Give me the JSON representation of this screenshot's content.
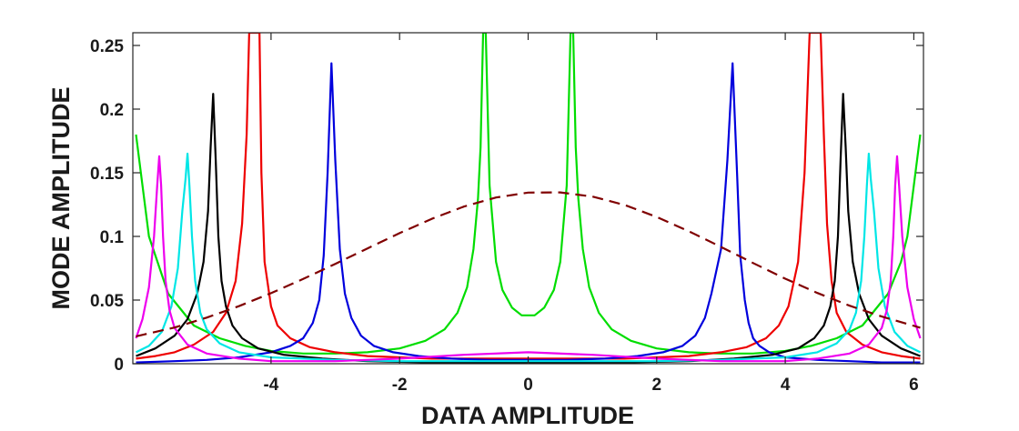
{
  "chart_data": {
    "type": "line",
    "xlabel": "DATA  AMPLITUDE",
    "ylabel": "MODE  AMPLITUDE",
    "xlim": [
      -6.15,
      6.15
    ],
    "ylim": [
      0,
      0.26
    ],
    "xticks": [
      -4,
      -2,
      0,
      2,
      4,
      6
    ],
    "xtick_labels": [
      "-4",
      "-2",
      "0",
      "2",
      "4",
      "6"
    ],
    "yticks": [
      0,
      0.05,
      0.1,
      0.15,
      0.2,
      0.25
    ],
    "ytick_labels": [
      "0",
      "0.05",
      "0.1",
      "0.15",
      "0.2",
      "0.25"
    ],
    "grid": false,
    "legend": "none",
    "series": [
      {
        "color": "#00dd00",
        "style": "solid",
        "x": [
          -6.1,
          -5.9,
          -5.6,
          -5.2,
          -4.8,
          -4.4,
          -4.0,
          -3.5,
          -3.0,
          -2.5,
          -2.0,
          -1.6,
          -1.3,
          -1.1,
          -0.95,
          -0.85,
          -0.78,
          -0.74,
          -0.7,
          -0.66,
          -0.6,
          -0.5,
          -0.4,
          -0.25,
          -0.1,
          0.1,
          0.25,
          0.4,
          0.5,
          0.6,
          0.66,
          0.7,
          0.74,
          0.78,
          0.85,
          0.95,
          1.1,
          1.3,
          1.6,
          2.0,
          2.5,
          3.0,
          3.5,
          4.0,
          4.4,
          4.8,
          5.2,
          5.6,
          5.8,
          5.9,
          6.0,
          6.1
        ],
        "y": [
          0.18,
          0.1,
          0.055,
          0.03,
          0.02,
          0.014,
          0.01,
          0.008,
          0.008,
          0.009,
          0.012,
          0.018,
          0.027,
          0.04,
          0.06,
          0.09,
          0.13,
          0.17,
          0.26,
          0.26,
          0.14,
          0.08,
          0.058,
          0.044,
          0.038,
          0.038,
          0.044,
          0.058,
          0.08,
          0.14,
          0.26,
          0.26,
          0.17,
          0.13,
          0.09,
          0.06,
          0.04,
          0.027,
          0.018,
          0.012,
          0.009,
          0.008,
          0.008,
          0.01,
          0.014,
          0.02,
          0.03,
          0.055,
          0.08,
          0.1,
          0.14,
          0.18
        ]
      },
      {
        "color": "#ee0000",
        "style": "solid",
        "x": [
          -6.1,
          -5.8,
          -5.5,
          -5.2,
          -4.9,
          -4.7,
          -4.55,
          -4.45,
          -4.38,
          -4.34,
          -4.3,
          -4.22,
          -4.18,
          -4.15,
          -4.1,
          -4.0,
          -3.9,
          -3.7,
          -3.4,
          -3.0,
          -2.5,
          -2.0,
          -1.5,
          -1.0,
          -0.5,
          0.0,
          0.5,
          1.0,
          1.5,
          2.0,
          2.5,
          3.0,
          3.4,
          3.7,
          3.9,
          4.05,
          4.2,
          4.3,
          4.38,
          4.42,
          4.47,
          4.55,
          4.6,
          4.65,
          4.72,
          4.8,
          4.95,
          5.2,
          5.5,
          5.8,
          6.1
        ],
        "y": [
          0.004,
          0.006,
          0.009,
          0.015,
          0.025,
          0.04,
          0.065,
          0.11,
          0.18,
          0.26,
          0.26,
          0.26,
          0.26,
          0.15,
          0.08,
          0.045,
          0.03,
          0.02,
          0.013,
          0.009,
          0.006,
          0.005,
          0.004,
          0.004,
          0.004,
          0.004,
          0.004,
          0.004,
          0.004,
          0.005,
          0.006,
          0.009,
          0.013,
          0.02,
          0.03,
          0.045,
          0.08,
          0.15,
          0.26,
          0.26,
          0.26,
          0.26,
          0.18,
          0.11,
          0.065,
          0.04,
          0.025,
          0.015,
          0.009,
          0.006,
          0.004
        ]
      },
      {
        "color": "#0000dd",
        "style": "solid",
        "x": [
          -6.1,
          -5.5,
          -5.0,
          -4.5,
          -4.0,
          -3.7,
          -3.5,
          -3.35,
          -3.25,
          -3.18,
          -3.12,
          -3.06,
          -3.0,
          -2.93,
          -2.85,
          -2.75,
          -2.6,
          -2.4,
          -2.1,
          -1.7,
          -1.2,
          -0.6,
          0.0,
          0.6,
          1.2,
          1.7,
          2.1,
          2.4,
          2.6,
          2.75,
          2.85,
          3.0,
          3.1,
          3.18,
          3.25,
          3.3,
          3.37,
          3.43,
          3.5,
          3.6,
          3.75,
          4.0,
          4.5,
          5.0,
          5.5,
          6.1
        ],
        "y": [
          0.001,
          0.002,
          0.003,
          0.005,
          0.009,
          0.014,
          0.02,
          0.032,
          0.05,
          0.085,
          0.15,
          0.236,
          0.16,
          0.09,
          0.055,
          0.036,
          0.022,
          0.014,
          0.009,
          0.006,
          0.004,
          0.003,
          0.003,
          0.003,
          0.004,
          0.006,
          0.009,
          0.014,
          0.022,
          0.036,
          0.055,
          0.09,
          0.16,
          0.236,
          0.15,
          0.085,
          0.05,
          0.032,
          0.02,
          0.014,
          0.009,
          0.005,
          0.003,
          0.002,
          0.001,
          0.001
        ]
      },
      {
        "color": "#000000",
        "style": "solid",
        "x": [
          -6.1,
          -5.8,
          -5.5,
          -5.3,
          -5.15,
          -5.05,
          -4.98,
          -4.94,
          -4.9,
          -4.86,
          -4.82,
          -4.77,
          -4.7,
          -4.6,
          -4.45,
          -4.2,
          -3.8,
          -3.2,
          -2.5,
          -1.5,
          0.0,
          1.5,
          2.5,
          3.2,
          3.8,
          4.2,
          4.45,
          4.6,
          4.7,
          4.77,
          4.82,
          4.86,
          4.9,
          4.94,
          4.98,
          5.05,
          5.15,
          5.3,
          5.5,
          5.8,
          6.1
        ],
        "y": [
          0.006,
          0.012,
          0.022,
          0.035,
          0.055,
          0.08,
          0.12,
          0.17,
          0.212,
          0.16,
          0.1,
          0.065,
          0.045,
          0.03,
          0.02,
          0.012,
          0.007,
          0.004,
          0.002,
          0.001,
          0.001,
          0.001,
          0.002,
          0.004,
          0.007,
          0.012,
          0.02,
          0.03,
          0.045,
          0.065,
          0.1,
          0.16,
          0.212,
          0.17,
          0.12,
          0.08,
          0.055,
          0.035,
          0.022,
          0.012,
          0.006
        ]
      },
      {
        "color": "#00e6e6",
        "style": "solid",
        "x": [
          -6.1,
          -5.9,
          -5.7,
          -5.55,
          -5.45,
          -5.38,
          -5.33,
          -5.3,
          -5.27,
          -5.23,
          -5.18,
          -5.1,
          -5.0,
          -4.8,
          -4.5,
          -4.0,
          -3.0,
          -2.0,
          0.0,
          2.0,
          3.0,
          4.0,
          4.5,
          4.8,
          5.0,
          5.1,
          5.18,
          5.23,
          5.27,
          5.3,
          5.33,
          5.38,
          5.45,
          5.55,
          5.7,
          5.9,
          6.1
        ],
        "y": [
          0.009,
          0.014,
          0.025,
          0.045,
          0.075,
          0.12,
          0.145,
          0.165,
          0.14,
          0.1,
          0.065,
          0.04,
          0.027,
          0.016,
          0.009,
          0.005,
          0.003,
          0.002,
          0.002,
          0.002,
          0.003,
          0.005,
          0.009,
          0.016,
          0.027,
          0.04,
          0.065,
          0.1,
          0.14,
          0.165,
          0.145,
          0.12,
          0.075,
          0.045,
          0.025,
          0.014,
          0.009
        ]
      },
      {
        "color": "#ee00ee",
        "style": "solid",
        "x": [
          -6.1,
          -6.0,
          -5.9,
          -5.82,
          -5.77,
          -5.74,
          -5.71,
          -5.68,
          -5.64,
          -5.58,
          -5.5,
          -5.3,
          -5.0,
          -4.5,
          -4.0,
          -3.0,
          -2.0,
          -1.0,
          0.0,
          1.0,
          2.0,
          3.0,
          4.0,
          4.5,
          5.0,
          5.3,
          5.5,
          5.58,
          5.64,
          5.68,
          5.71,
          5.74,
          5.77,
          5.82,
          5.9,
          6.0,
          6.1
        ],
        "y": [
          0.02,
          0.035,
          0.06,
          0.1,
          0.14,
          0.163,
          0.14,
          0.1,
          0.065,
          0.042,
          0.028,
          0.015,
          0.008,
          0.004,
          0.002,
          0.002,
          0.004,
          0.007,
          0.009,
          0.007,
          0.004,
          0.002,
          0.002,
          0.004,
          0.008,
          0.015,
          0.028,
          0.042,
          0.065,
          0.1,
          0.14,
          0.163,
          0.14,
          0.1,
          0.06,
          0.035,
          0.02
        ]
      },
      {
        "color": "#800000",
        "style": "dashed",
        "x": [
          -6.1,
          -5.5,
          -5.0,
          -4.5,
          -4.0,
          -3.5,
          -3.0,
          -2.5,
          -2.0,
          -1.5,
          -1.0,
          -0.5,
          0.0,
          0.5,
          1.0,
          1.5,
          2.0,
          2.5,
          3.0,
          3.5,
          4.0,
          4.5,
          5.0,
          5.5,
          6.1
        ],
        "y": [
          0.0215,
          0.0284,
          0.0362,
          0.0452,
          0.0554,
          0.0666,
          0.0784,
          0.0906,
          0.1026,
          0.1138,
          0.1234,
          0.1306,
          0.1344,
          0.1346,
          0.1313,
          0.1247,
          0.1153,
          0.1041,
          0.0917,
          0.0791,
          0.0668,
          0.0556,
          0.0456,
          0.0371,
          0.0283
        ]
      }
    ]
  }
}
